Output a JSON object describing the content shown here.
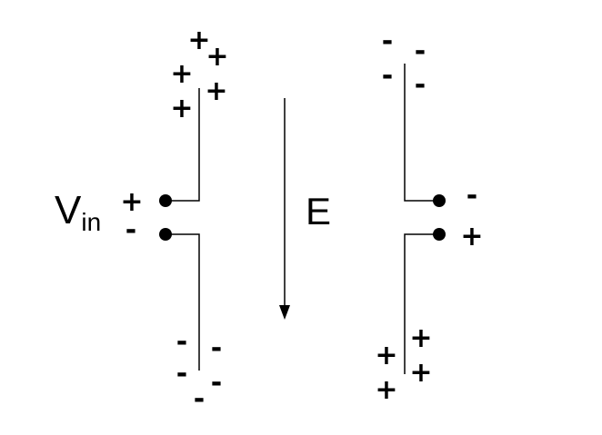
{
  "labels": {
    "source_symbol": "V",
    "source_subscript": "in",
    "source_polarity_top": "+",
    "source_polarity_bottom": "-",
    "field": "E",
    "right_polarity_top": "-",
    "right_polarity_bottom": "+"
  },
  "charges": {
    "left_top": [
      "+",
      "+",
      "+",
      "+",
      "+"
    ],
    "right_top": [
      "-",
      "-",
      "-",
      "-"
    ],
    "left_bottom": [
      "-",
      "-",
      "-",
      "-",
      "-"
    ],
    "right_bottom": [
      "+",
      "+",
      "+",
      "+"
    ]
  },
  "colors": {
    "ink": "#000000",
    "background": "#ffffff"
  }
}
